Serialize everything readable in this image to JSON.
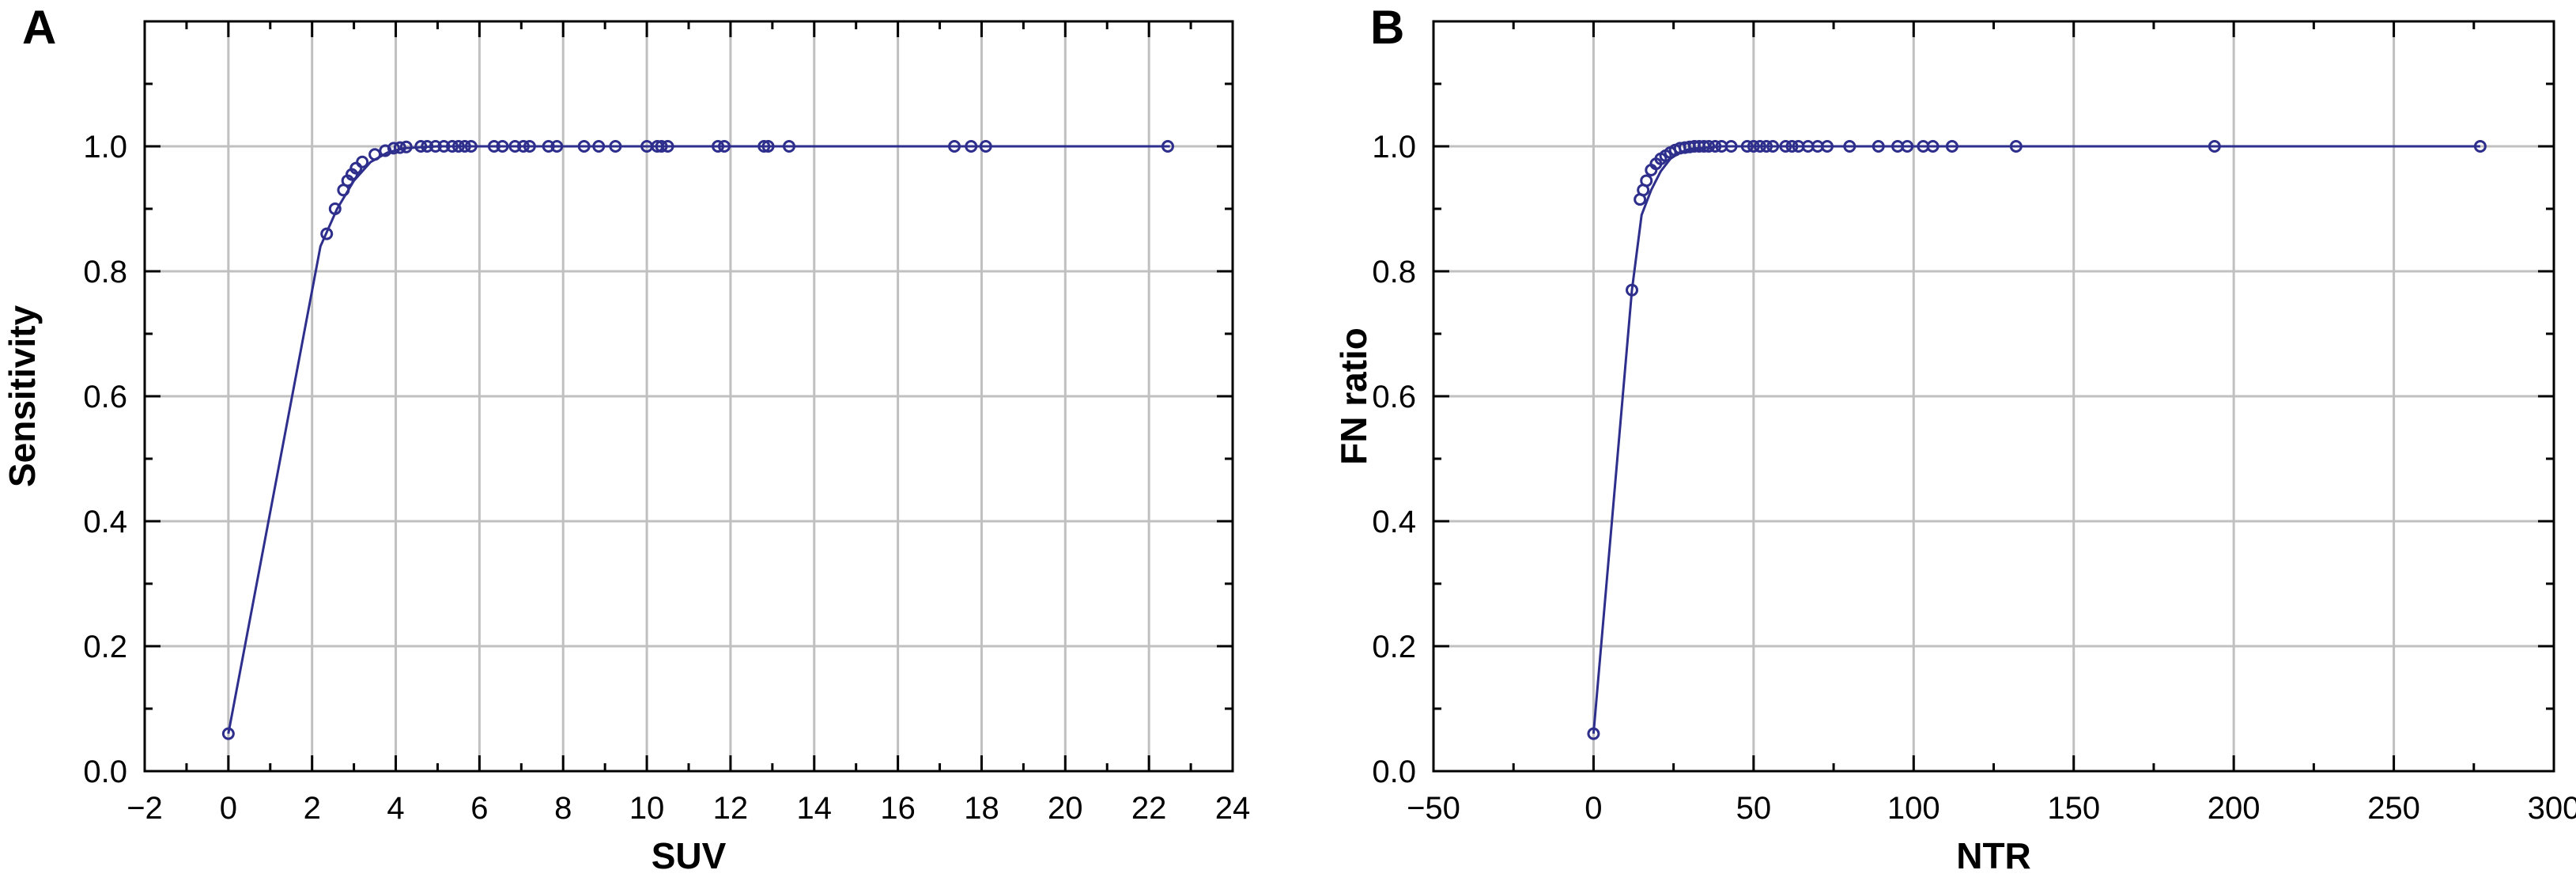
{
  "chart_data": [
    {
      "type": "line",
      "panel_label": "A",
      "xlabel": "SUV",
      "ylabel": "Sensitivity",
      "xlim": [
        -2,
        24
      ],
      "ylim": [
        0,
        1.2
      ],
      "xticks": [
        -2,
        0,
        2,
        4,
        6,
        8,
        10,
        12,
        14,
        16,
        18,
        20,
        22,
        24
      ],
      "xtick_labels": [
        "−2",
        "0",
        "2",
        "4",
        "6",
        "8",
        "10",
        "12",
        "14",
        "16",
        "18",
        "20",
        "22",
        "24"
      ],
      "yticks": [
        0,
        0.2,
        0.4,
        0.6,
        0.8,
        1.0
      ],
      "ytick_labels": [
        "0.0",
        "0.2",
        "0.4",
        "0.6",
        "0.8",
        "1.0"
      ],
      "grid": true,
      "color": "#2e2e8c",
      "fit_curve": {
        "x": [
          0,
          2.2,
          2.6,
          3.0,
          3.4,
          3.8,
          4.2,
          5,
          6,
          8,
          10,
          14,
          18,
          22.5
        ],
        "y": [
          0.06,
          0.84,
          0.9,
          0.945,
          0.975,
          0.99,
          0.997,
          1.0,
          1.0,
          1.0,
          1.0,
          1.0,
          1.0,
          1.0
        ]
      },
      "points": {
        "x": [
          0,
          2.35,
          2.55,
          2.75,
          2.85,
          2.95,
          3.05,
          3.2,
          3.5,
          3.75,
          3.95,
          4.1,
          4.25,
          4.6,
          4.75,
          4.95,
          5.15,
          5.35,
          5.5,
          5.65,
          5.8,
          6.35,
          6.55,
          6.85,
          7.05,
          7.2,
          7.65,
          7.85,
          8.5,
          8.85,
          9.25,
          10.0,
          10.25,
          10.35,
          10.5,
          11.7,
          11.85,
          12.8,
          12.9,
          13.4,
          17.35,
          17.75,
          18.1,
          22.45
        ],
        "y": [
          0.06,
          0.86,
          0.9,
          0.93,
          0.945,
          0.955,
          0.965,
          0.975,
          0.987,
          0.993,
          0.997,
          0.998,
          0.999,
          1.0,
          1.0,
          1.0,
          1.0,
          1.0,
          1.0,
          1.0,
          1.0,
          1.0,
          1.0,
          1.0,
          1.0,
          1.0,
          1.0,
          1.0,
          1.0,
          1.0,
          1.0,
          1.0,
          1.0,
          1.0,
          1.0,
          1.0,
          1.0,
          1.0,
          1.0,
          1.0,
          1.0,
          1.0,
          1.0,
          1.0
        ]
      }
    },
    {
      "type": "line",
      "panel_label": "B",
      "xlabel": "NTR",
      "ylabel": "FN ratio",
      "xlim": [
        -50,
        300
      ],
      "ylim": [
        0,
        1.2
      ],
      "xticks": [
        -50,
        0,
        50,
        100,
        150,
        200,
        250,
        300
      ],
      "xtick_labels": [
        "−50",
        "0",
        "50",
        "100",
        "150",
        "200",
        "250",
        "300"
      ],
      "yticks": [
        0,
        0.2,
        0.4,
        0.6,
        0.8,
        1.0
      ],
      "ytick_labels": [
        "0.0",
        "0.2",
        "0.4",
        "0.6",
        "0.8",
        "1.0"
      ],
      "grid": true,
      "color": "#2e2e8c",
      "fit_curve": {
        "x": [
          0,
          12,
          15,
          18,
          21,
          24,
          27,
          30,
          40,
          60,
          100,
          150,
          200,
          277
        ],
        "y": [
          0.06,
          0.77,
          0.89,
          0.93,
          0.96,
          0.98,
          0.99,
          0.996,
          1.0,
          1.0,
          1.0,
          1.0,
          1.0,
          1.0
        ]
      },
      "points": {
        "x": [
          0,
          12,
          14.5,
          15.5,
          16.5,
          18,
          19.5,
          21,
          22.5,
          24,
          25.5,
          27,
          28.5,
          30,
          31.5,
          33,
          34.5,
          36,
          38,
          40,
          43,
          48,
          50,
          52,
          54,
          56,
          60,
          62,
          64,
          67,
          70,
          73,
          80,
          89,
          95,
          98,
          103,
          106,
          112,
          132,
          194,
          277
        ],
        "y": [
          0.06,
          0.77,
          0.915,
          0.93,
          0.945,
          0.962,
          0.972,
          0.98,
          0.985,
          0.99,
          0.994,
          0.997,
          0.998,
          0.999,
          1.0,
          1.0,
          1.0,
          1.0,
          1.0,
          1.0,
          1.0,
          1.0,
          1.0,
          1.0,
          1.0,
          1.0,
          1.0,
          1.0,
          1.0,
          1.0,
          1.0,
          1.0,
          1.0,
          1.0,
          1.0,
          1.0,
          1.0,
          1.0,
          1.0,
          1.0,
          1.0,
          1.0
        ]
      }
    }
  ]
}
